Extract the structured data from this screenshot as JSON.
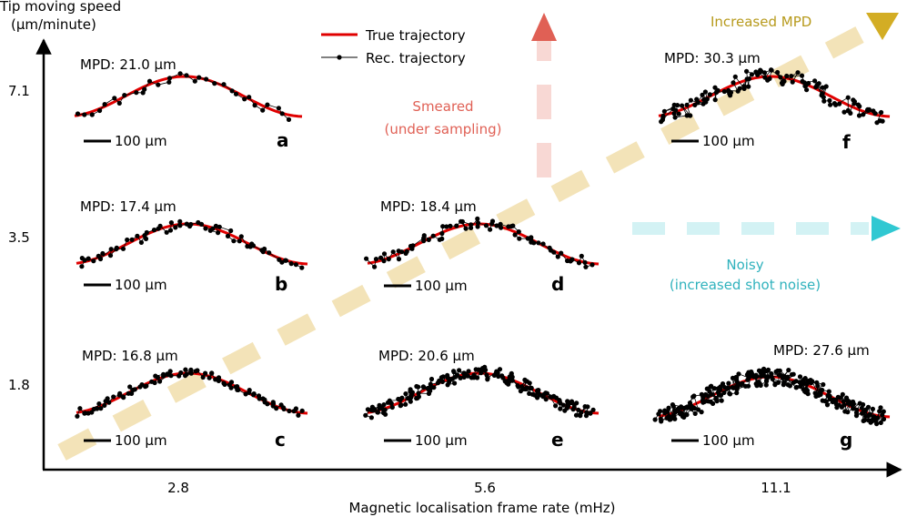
{
  "y_axis": {
    "label_line1": "Tip moving speed",
    "label_line2": "(μm/minute)",
    "ticks": [
      "7.1",
      "3.5",
      "1.8"
    ]
  },
  "x_axis": {
    "label": "Magnetic localisation frame rate (mHz)",
    "ticks": [
      "2.8",
      "5.6",
      "11.1"
    ]
  },
  "legend": {
    "true_label": "True trajectory",
    "rec_label": "Rec. trajectory"
  },
  "annotations": {
    "mpd_title": "Increased MPD",
    "smeared_line1": "Smeared",
    "smeared_line2": "(under sampling)",
    "noisy_line1": "Noisy",
    "noisy_line2": "(increased shot noise)"
  },
  "panels": [
    {
      "id": "a",
      "letter": "a",
      "mpd": "MPD: 21.0 μm",
      "scale_bar": "100 μm",
      "points": 32,
      "noise": 0.6
    },
    {
      "id": "b",
      "letter": "b",
      "mpd": "MPD: 17.4 μm",
      "scale_bar": "100 μm",
      "points": 60,
      "noise": 0.55
    },
    {
      "id": "c",
      "letter": "c",
      "mpd": "MPD: 16.8 μm",
      "scale_bar": "100 μm",
      "points": 90,
      "noise": 0.5
    },
    {
      "id": "d",
      "letter": "d",
      "mpd": "MPD: 18.4 μm",
      "scale_bar": "100 μm",
      "points": 70,
      "noise": 0.65
    },
    {
      "id": "e",
      "letter": "e",
      "mpd": "MPD: 20.6 μm",
      "scale_bar": "100 μm",
      "points": 170,
      "noise": 0.75
    },
    {
      "id": "f",
      "letter": "f",
      "mpd": "MPD: 30.3 μm",
      "scale_bar": "100 μm",
      "points": 110,
      "noise": 1.0
    },
    {
      "id": "g",
      "letter": "g",
      "mpd": "MPD: 27.6 μm",
      "scale_bar": "100 μm",
      "points": 260,
      "noise": 1.0
    }
  ],
  "colors": {
    "true": "#e00000",
    "smeared": "#e06055",
    "noisy": "#30c8d2",
    "mpd": "#b79a1c",
    "band": "#f3e3b8"
  }
}
